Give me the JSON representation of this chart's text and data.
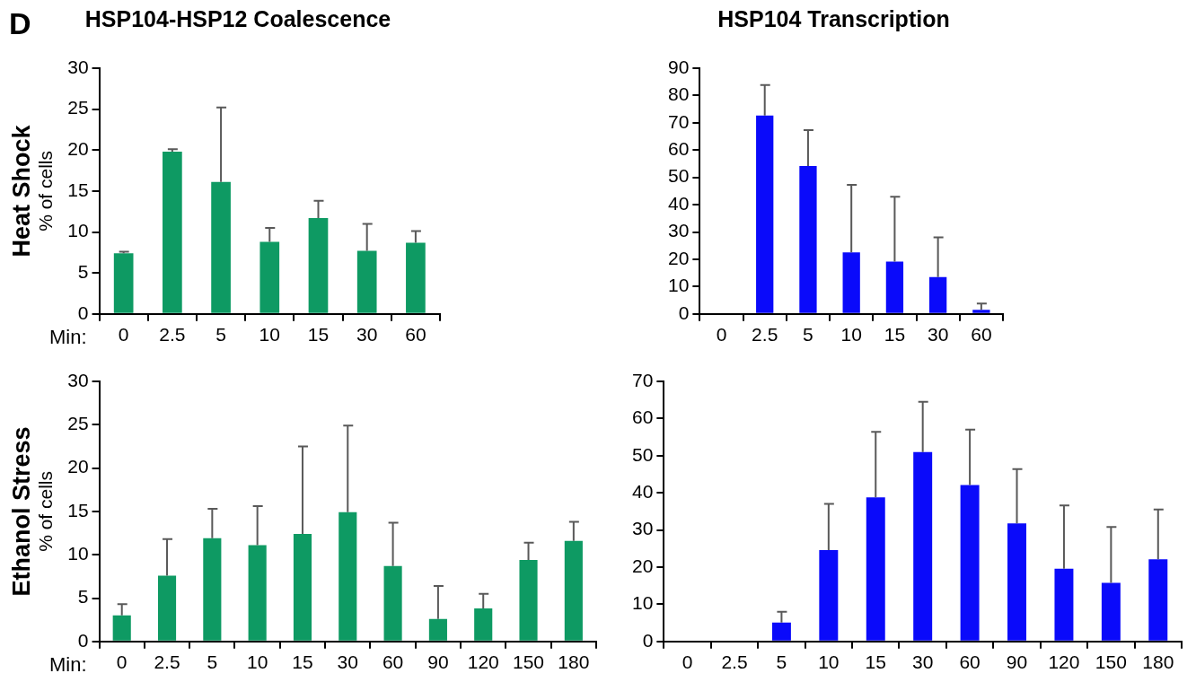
{
  "chart_data": [
    {
      "type": "bar",
      "title": "HSP104-HSP12 Coalescence",
      "ylabel": "% of cells",
      "xlabel": "Min:",
      "annotations": [
        "Heat Shock",
        "D"
      ],
      "categories": [
        "0",
        "2.5",
        "5",
        "10",
        "15",
        "30",
        "60"
      ],
      "color": "#0e9a63",
      "values": [
        7.4,
        19.8,
        16.1,
        8.8,
        11.7,
        7.7,
        8.7
      ],
      "errors": [
        [
          7.4,
          7.6
        ],
        [
          19.8,
          20.1
        ],
        [
          16.1,
          25.2
        ],
        [
          8.8,
          10.5
        ],
        [
          11.7,
          13.8
        ],
        [
          7.7,
          11.0
        ],
        [
          8.7,
          10.1
        ]
      ],
      "ylim": [
        0,
        30
      ],
      "yticks": [
        0,
        5,
        10,
        15,
        20,
        25,
        30
      ],
      "grid": false,
      "legend": false
    },
    {
      "type": "bar",
      "title": "HSP104 Transcription",
      "categories": [
        "0",
        "2.5",
        "5",
        "10",
        "15",
        "30",
        "60"
      ],
      "color": "#0a0afa",
      "values": [
        0,
        72.7,
        54.2,
        22.5,
        19.2,
        13.5,
        1.5
      ],
      "errors": [
        null,
        [
          72.7,
          83.8
        ],
        [
          54.2,
          67.3
        ],
        [
          22.5,
          47.3
        ],
        [
          19.2,
          42.9
        ],
        [
          13.5,
          28.0
        ],
        [
          1.5,
          3.8
        ]
      ],
      "ylim": [
        0,
        90
      ],
      "yticks": [
        0,
        10,
        20,
        30,
        40,
        50,
        60,
        70,
        80,
        90
      ],
      "grid": false,
      "legend": false
    },
    {
      "type": "bar",
      "ylabel": "% of cells",
      "xlabel": "Min:",
      "annotations": [
        "Ethanol Stress"
      ],
      "categories": [
        "0",
        "2.5",
        "5",
        "10",
        "15",
        "30",
        "60",
        "90",
        "120",
        "150",
        "180"
      ],
      "color": "#0e9a63",
      "values": [
        3.0,
        7.6,
        11.9,
        11.1,
        12.4,
        14.9,
        8.7,
        2.6,
        3.8,
        9.4,
        11.6
      ],
      "errors": [
        [
          3.0,
          4.3
        ],
        [
          7.6,
          11.8
        ],
        [
          11.9,
          15.3
        ],
        [
          11.1,
          15.6
        ],
        [
          12.4,
          22.5
        ],
        [
          14.9,
          24.9
        ],
        [
          8.7,
          13.7
        ],
        [
          2.6,
          6.4
        ],
        [
          3.8,
          5.5
        ],
        [
          9.4,
          11.4
        ],
        [
          11.6,
          13.8
        ]
      ],
      "ylim": [
        0,
        30
      ],
      "yticks": [
        0,
        5,
        10,
        15,
        20,
        25,
        30
      ],
      "grid": false,
      "legend": false
    },
    {
      "type": "bar",
      "categories": [
        "0",
        "2.5",
        "5",
        "10",
        "15",
        "30",
        "60",
        "90",
        "120",
        "150",
        "180"
      ],
      "color": "#0a0afa",
      "values": [
        0,
        0,
        5.1,
        24.6,
        38.8,
        51.0,
        42.1,
        31.8,
        19.6,
        15.8,
        22.1
      ],
      "errors": [
        null,
        null,
        [
          5.1,
          8.0
        ],
        [
          24.6,
          37.0
        ],
        [
          38.8,
          56.4
        ],
        [
          51.0,
          64.5
        ],
        [
          42.1,
          57.0
        ],
        [
          31.8,
          46.4
        ],
        [
          19.6,
          36.6
        ],
        [
          15.8,
          30.8
        ],
        [
          22.1,
          35.5
        ]
      ],
      "ylim": [
        0,
        70
      ],
      "yticks": [
        0,
        10,
        20,
        30,
        40,
        50,
        60,
        70
      ],
      "grid": false,
      "legend": false
    }
  ]
}
